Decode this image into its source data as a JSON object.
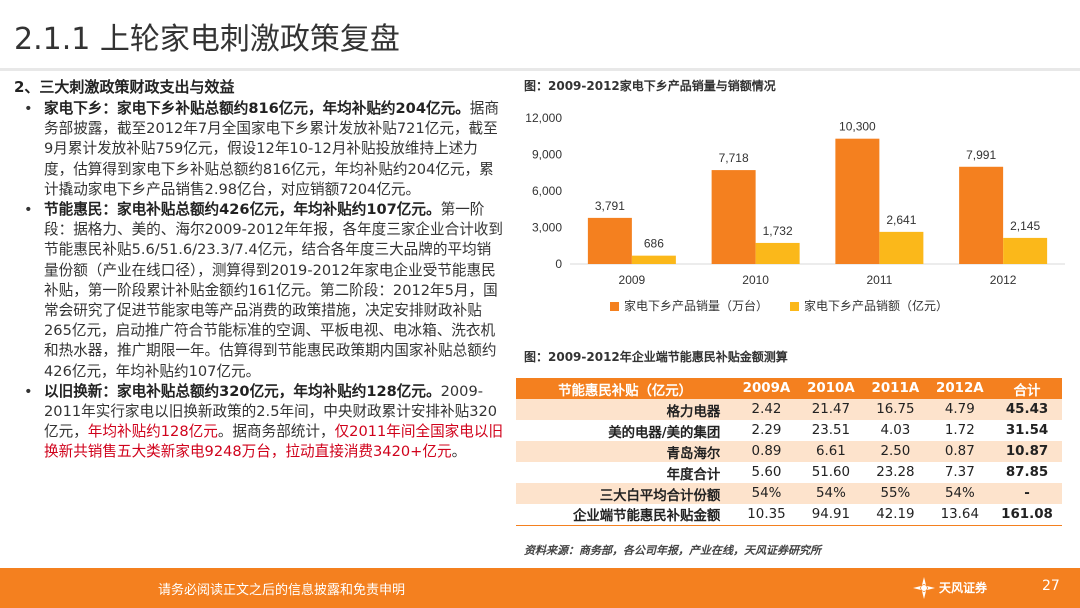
{
  "slide": {
    "title": "2.1.1 上轮家电刺激政策复盘",
    "section_head": "2、三大刺激政策财政支出与效益"
  },
  "bullets": [
    {
      "lead": "家电下乡：家电下乡补贴总额约816亿元，年均补贴约204亿元。",
      "body": "据商务部披露，截至2012年7月全国家电下乡累计发放补贴721亿元，截至9月累计发放补贴759亿元，假设12年10-12月补贴投放维持上述力度，估算得到家电下乡补贴总额约816亿元，年均补贴约204亿元，累计撬动家电下乡产品销售2.98亿台，对应销额7204亿元。"
    },
    {
      "lead": "节能惠民：家电补贴总额约426亿元，年均补贴约107亿元。",
      "body": "第一阶段：据格力、美的、海尔2009-2012年年报，各年度三家企业合计收到节能惠民补贴5.6/51.6/23.3/7.4亿元，结合各年度三大品牌的平均销量份额（产业在线口径），测算得到2019-2012年家电企业受节能惠民补贴，第一阶段累计补贴金额约161亿元。第二阶段：2012年5月，国常会研究了促进节能家电等产品消费的政策措施，决定安排财政补贴265亿元，启动推广符合节能标准的空调、平板电视、电冰箱、洗衣机和热水器，推广期限一年。估算得到节能惠民政策期内国家补贴总额约426亿元，年均补贴约107亿元。"
    },
    {
      "lead": "以旧换新：家电补贴总额约320亿元，年均补贴约128亿元。",
      "body1": "2009-2011年实行家电以旧换新政策的2.5年间，中央财政累计安排补贴320亿元，",
      "red1": "年均补贴约128亿元",
      "body2": "。据商务部统计，",
      "red2": "仅2011年间全国家电以旧换新共销售五大类新家电9248万台，拉动直接消费3420+亿元",
      "body3": "。"
    }
  ],
  "chart_title": "图：2009-2012家电下乡产品销量与销额情况",
  "chart_data": {
    "type": "bar",
    "categories": [
      "2009",
      "2010",
      "2011",
      "2012"
    ],
    "series": [
      {
        "name": "家电下乡产品销量（万台）",
        "values": [
          3791,
          7718,
          10300,
          7991
        ],
        "labels": [
          "3,791",
          "7,718",
          "10,300",
          "7,991"
        ],
        "color": "#f4801f"
      },
      {
        "name": "家电下乡产品销额（亿元）",
        "values": [
          686,
          1732,
          2641,
          2145
        ],
        "labels": [
          "686",
          "1,732",
          "2,641",
          "2,145"
        ],
        "color": "#fbb81a"
      }
    ],
    "yticks": [
      0,
      3000,
      6000,
      9000,
      12000
    ],
    "ytick_labels": [
      "0",
      "3,000",
      "6,000",
      "9,000",
      "12,000"
    ],
    "ylim": [
      0,
      12000
    ],
    "grid": false,
    "legend": "bottom"
  },
  "table": {
    "title": "图：2009-2012年企业端节能惠民补贴金额测算",
    "headers": [
      "节能惠民补贴（亿元）",
      "2009A",
      "2010A",
      "2011A",
      "2012A",
      "合计"
    ],
    "rows": [
      [
        "格力电器",
        "2.42",
        "21.47",
        "16.75",
        "4.79",
        "45.43"
      ],
      [
        "美的电器/美的集团",
        "2.29",
        "23.51",
        "4.03",
        "1.72",
        "31.54"
      ],
      [
        "青岛海尔",
        "0.89",
        "6.61",
        "2.50",
        "0.87",
        "10.87"
      ],
      [
        "年度合计",
        "5.60",
        "51.60",
        "23.28",
        "7.37",
        "87.85"
      ],
      [
        "三大白平均合计份额",
        "54%",
        "54%",
        "55%",
        "54%",
        "-"
      ],
      [
        "企业端节能惠民补贴金额",
        "10.35",
        "94.91",
        "42.19",
        "13.64",
        "161.08"
      ]
    ]
  },
  "source": "资料来源：商务部，各公司年报，产业在线，天风证券研究所",
  "footer": {
    "disclaimer": "请务必阅读正文之后的信息披露和免责申明",
    "logo_text": "天风证券",
    "logo_icon": "tianfeng-logo-icon",
    "page": "27"
  }
}
